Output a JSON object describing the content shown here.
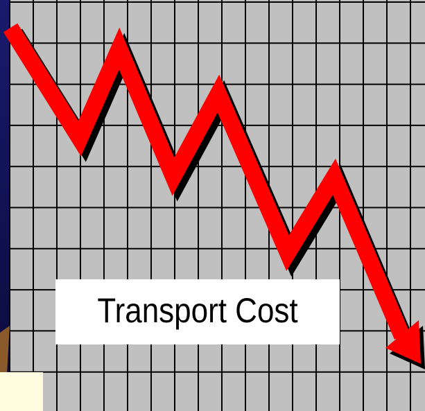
{
  "label": "Transport Cost"
}
